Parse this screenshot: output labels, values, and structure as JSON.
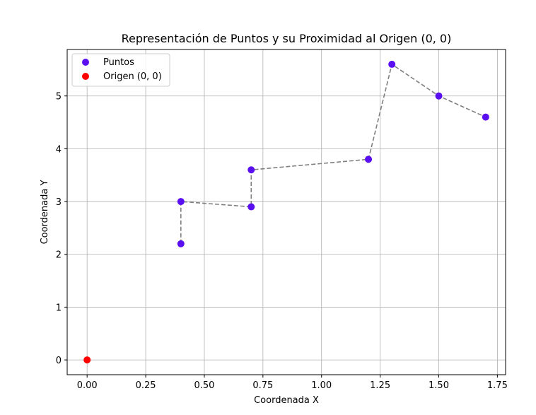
{
  "chart_data": {
    "type": "scatter",
    "title": "Representación de Puntos y su Proximidad al Origen (0, 0)",
    "xlabel": "Coordenada X",
    "ylabel": "Coordenada Y",
    "xlim": [
      -0.085,
      1.785
    ],
    "ylim": [
      -0.28,
      5.88
    ],
    "xticks": [
      0.0,
      0.25,
      0.5,
      0.75,
      1.0,
      1.25,
      1.5,
      1.75
    ],
    "xtick_labels": [
      "0.00",
      "0.25",
      "0.50",
      "0.75",
      "1.00",
      "1.25",
      "1.50",
      "1.75"
    ],
    "yticks": [
      0,
      1,
      2,
      3,
      4,
      5
    ],
    "ytick_labels": [
      "0",
      "1",
      "2",
      "3",
      "4",
      "5"
    ],
    "grid": true,
    "legend_position": "top-left",
    "series": [
      {
        "name": "Puntos",
        "color": "#5a0ff0",
        "points": [
          {
            "x": 0.4,
            "y": 2.2
          },
          {
            "x": 0.4,
            "y": 3.0
          },
          {
            "x": 0.7,
            "y": 2.9
          },
          {
            "x": 0.7,
            "y": 3.6
          },
          {
            "x": 1.2,
            "y": 3.8
          },
          {
            "x": 1.3,
            "y": 5.6
          },
          {
            "x": 1.5,
            "y": 5.0
          },
          {
            "x": 1.7,
            "y": 4.6
          }
        ]
      },
      {
        "name": "Origen (0, 0)",
        "color": "#ff0000",
        "points": [
          {
            "x": 0.0,
            "y": 0.0
          }
        ]
      }
    ],
    "connecting_path": {
      "style": "dashed",
      "color": "#808080",
      "points": [
        {
          "x": 0.4,
          "y": 2.2
        },
        {
          "x": 0.4,
          "y": 3.0
        },
        {
          "x": 0.7,
          "y": 2.9
        },
        {
          "x": 0.7,
          "y": 3.6
        },
        {
          "x": 1.2,
          "y": 3.8
        },
        {
          "x": 1.3,
          "y": 5.6
        },
        {
          "x": 1.5,
          "y": 5.0
        },
        {
          "x": 1.7,
          "y": 4.6
        }
      ]
    }
  }
}
